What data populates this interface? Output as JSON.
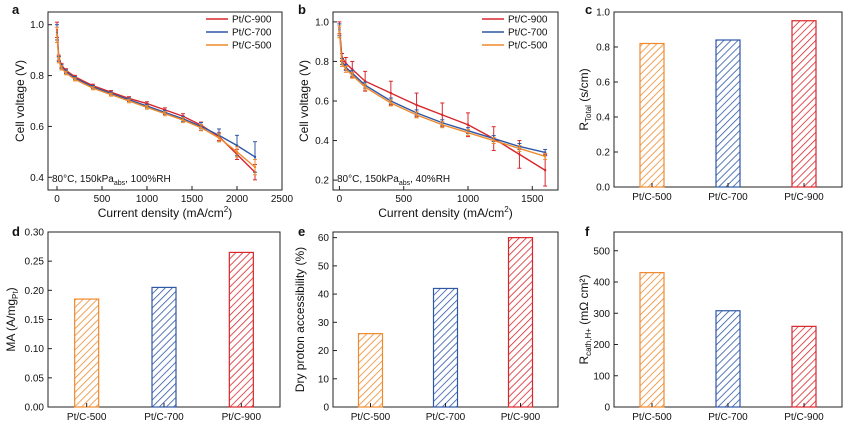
{
  "colors": {
    "pt900": "#d9262b",
    "pt700": "#2f57a6",
    "pt500": "#ee8a2d"
  },
  "chart_data": [
    {
      "panel": "a",
      "type": "line",
      "xlabel": "Current density (mA/cm",
      "xlabel_sup": "2",
      "xlabel_tail": ")",
      "ylabel": "Cell voltage (V)",
      "xlim": [
        -100,
        2500
      ],
      "ylim": [
        0.35,
        1.05
      ],
      "xticks": [
        0,
        500,
        1000,
        1500,
        2000,
        2500
      ],
      "yticks": [
        0.4,
        0.6,
        0.8,
        1.0
      ],
      "xtick_labels": [
        "0",
        "500",
        "1000",
        "1500",
        "2000",
        "2500"
      ],
      "ytick_labels": [
        "0.4",
        "0.6",
        "0.8",
        "1.0"
      ],
      "annotation": {
        "pre": "80°C, 150kPa",
        "sub": "abs",
        "post": ", 100%RH"
      },
      "legend": [
        "Pt/C-900",
        "Pt/C-700",
        "Pt/C-500"
      ],
      "series": [
        {
          "name": "Pt/C-900",
          "color": "#d9262b",
          "x": [
            0,
            20,
            50,
            100,
            200,
            400,
            600,
            800,
            1000,
            1200,
            1400,
            1600,
            1800,
            2000,
            2200
          ],
          "y": [
            0.98,
            0.87,
            0.84,
            0.82,
            0.795,
            0.76,
            0.735,
            0.71,
            0.69,
            0.665,
            0.64,
            0.605,
            0.56,
            0.49,
            0.42
          ],
          "err": [
            0.03,
            0.01,
            0.008,
            0.007,
            0.006,
            0.006,
            0.006,
            0.007,
            0.007,
            0.008,
            0.01,
            0.012,
            0.015,
            0.02,
            0.03
          ]
        },
        {
          "name": "Pt/C-700",
          "color": "#2f57a6",
          "x": [
            0,
            20,
            50,
            100,
            200,
            400,
            600,
            800,
            1000,
            1200,
            1400,
            1600,
            1800,
            2000,
            2200
          ],
          "y": [
            0.97,
            0.865,
            0.835,
            0.815,
            0.79,
            0.755,
            0.73,
            0.705,
            0.68,
            0.655,
            0.63,
            0.6,
            0.565,
            0.525,
            0.48
          ],
          "err": [
            0.03,
            0.01,
            0.008,
            0.007,
            0.006,
            0.006,
            0.006,
            0.007,
            0.007,
            0.008,
            0.01,
            0.015,
            0.025,
            0.04,
            0.06
          ]
        },
        {
          "name": "Pt/C-500",
          "color": "#ee8a2d",
          "x": [
            0,
            20,
            50,
            100,
            200,
            400,
            600,
            800,
            1000,
            1200,
            1400,
            1600,
            1800,
            2000,
            2200
          ],
          "y": [
            0.96,
            0.86,
            0.83,
            0.81,
            0.785,
            0.75,
            0.725,
            0.7,
            0.675,
            0.65,
            0.625,
            0.595,
            0.555,
            0.5,
            0.44
          ],
          "err": [
            0.03,
            0.01,
            0.008,
            0.007,
            0.006,
            0.006,
            0.006,
            0.007,
            0.007,
            0.008,
            0.01,
            0.012,
            0.015,
            0.02,
            0.03
          ]
        }
      ]
    },
    {
      "panel": "b",
      "type": "line",
      "xlabel": "Current density (mA/cm",
      "xlabel_sup": "2",
      "xlabel_tail": ")",
      "ylabel": "Cell voltage (V)",
      "xlim": [
        -50,
        1700
      ],
      "ylim": [
        0.15,
        1.05
      ],
      "xticks": [
        0,
        500,
        1000,
        1500
      ],
      "yticks": [
        0.2,
        0.4,
        0.6,
        0.8,
        1.0
      ],
      "xtick_labels": [
        "0",
        "500",
        "1000",
        "1500"
      ],
      "ytick_labels": [
        "0.2",
        "0.4",
        "0.6",
        "0.8",
        "1.0"
      ],
      "annotation": {
        "pre": "80°C, 150kPa",
        "sub": "abs",
        "post": ", 40%RH"
      },
      "legend": [
        "Pt/C-900",
        "Pt/C-700",
        "Pt/C-500"
      ],
      "series": [
        {
          "name": "Pt/C-900",
          "color": "#d9262b",
          "x": [
            0,
            20,
            50,
            100,
            200,
            400,
            600,
            800,
            1000,
            1200,
            1400,
            1600
          ],
          "y": [
            0.97,
            0.82,
            0.79,
            0.76,
            0.7,
            0.64,
            0.58,
            0.53,
            0.48,
            0.41,
            0.33,
            0.25
          ],
          "err": [
            0.03,
            0.02,
            0.03,
            0.04,
            0.05,
            0.06,
            0.06,
            0.06,
            0.06,
            0.06,
            0.07,
            0.08
          ]
        },
        {
          "name": "Pt/C-700",
          "color": "#2f57a6",
          "x": [
            0,
            20,
            50,
            100,
            200,
            400,
            600,
            800,
            1000,
            1200,
            1400,
            1600
          ],
          "y": [
            0.96,
            0.8,
            0.77,
            0.74,
            0.68,
            0.6,
            0.54,
            0.49,
            0.45,
            0.41,
            0.37,
            0.34
          ],
          "err": [
            0.03,
            0.015,
            0.015,
            0.015,
            0.015,
            0.015,
            0.015,
            0.015,
            0.015,
            0.015,
            0.015,
            0.015
          ]
        },
        {
          "name": "Pt/C-500",
          "color": "#ee8a2d",
          "x": [
            0,
            20,
            50,
            100,
            200,
            400,
            600,
            800,
            1000,
            1200,
            1400,
            1600
          ],
          "y": [
            0.95,
            0.79,
            0.76,
            0.73,
            0.67,
            0.59,
            0.53,
            0.48,
            0.44,
            0.4,
            0.36,
            0.32
          ],
          "err": [
            0.03,
            0.015,
            0.015,
            0.015,
            0.015,
            0.015,
            0.015,
            0.015,
            0.015,
            0.015,
            0.015,
            0.015
          ]
        }
      ]
    },
    {
      "panel": "c",
      "type": "bar",
      "categories": [
        "Pt/C-500",
        "Pt/C-700",
        "Pt/C-900"
      ],
      "values": [
        0.82,
        0.84,
        0.95
      ],
      "colors": [
        "#ee8a2d",
        "#2f57a6",
        "#d9262b"
      ],
      "ylim": [
        0,
        1.0
      ],
      "yticks": [
        0,
        0.2,
        0.4,
        0.6,
        0.8,
        1.0
      ],
      "ytick_labels": [
        "0.0",
        "0.2",
        "0.4",
        "0.6",
        "0.8",
        "1.0"
      ],
      "ylabel": {
        "main": "R",
        "sub": "Total",
        "tail": " (s/cm)"
      }
    },
    {
      "panel": "d",
      "type": "bar",
      "categories": [
        "Pt/C-500",
        "Pt/C-700",
        "Pt/C-900"
      ],
      "values": [
        0.185,
        0.205,
        0.265
      ],
      "colors": [
        "#ee8a2d",
        "#2f57a6",
        "#d9262b"
      ],
      "ylim": [
        0,
        0.3
      ],
      "yticks": [
        0,
        0.05,
        0.1,
        0.15,
        0.2,
        0.25,
        0.3
      ],
      "ytick_labels": [
        "0.00",
        "0.05",
        "0.10",
        "0.15",
        "0.20",
        "0.25",
        "0.30"
      ],
      "ylabel": {
        "main": "MA (A/mg",
        "sub": "Pt",
        "tail": ")"
      }
    },
    {
      "panel": "e",
      "type": "bar",
      "categories": [
        "Pt/C-500",
        "Pt/C-700",
        "Pt/C-900"
      ],
      "values": [
        26,
        42,
        60
      ],
      "colors": [
        "#ee8a2d",
        "#2f57a6",
        "#d9262b"
      ],
      "ylim": [
        0,
        62
      ],
      "yticks": [
        0,
        10,
        20,
        30,
        40,
        50,
        60
      ],
      "ytick_labels": [
        "0",
        "10",
        "20",
        "30",
        "40",
        "50",
        "60"
      ],
      "ylabel": {
        "main": "Dry proton accessibility (%)",
        "sub": "",
        "tail": ""
      }
    },
    {
      "panel": "f",
      "type": "bar",
      "categories": [
        "Pt/C-500",
        "Pt/C-700",
        "Pt/C-900"
      ],
      "values": [
        430,
        308,
        258
      ],
      "colors": [
        "#ee8a2d",
        "#2f57a6",
        "#d9262b"
      ],
      "ylim": [
        0,
        560
      ],
      "yticks": [
        0,
        100,
        200,
        300,
        400,
        500
      ],
      "ytick_labels": [
        "0",
        "100",
        "200",
        "300",
        "400",
        "500"
      ],
      "ylabel": {
        "main": "R",
        "sub": "cath,H+",
        "tail": " (mΩ cm²)"
      }
    }
  ]
}
